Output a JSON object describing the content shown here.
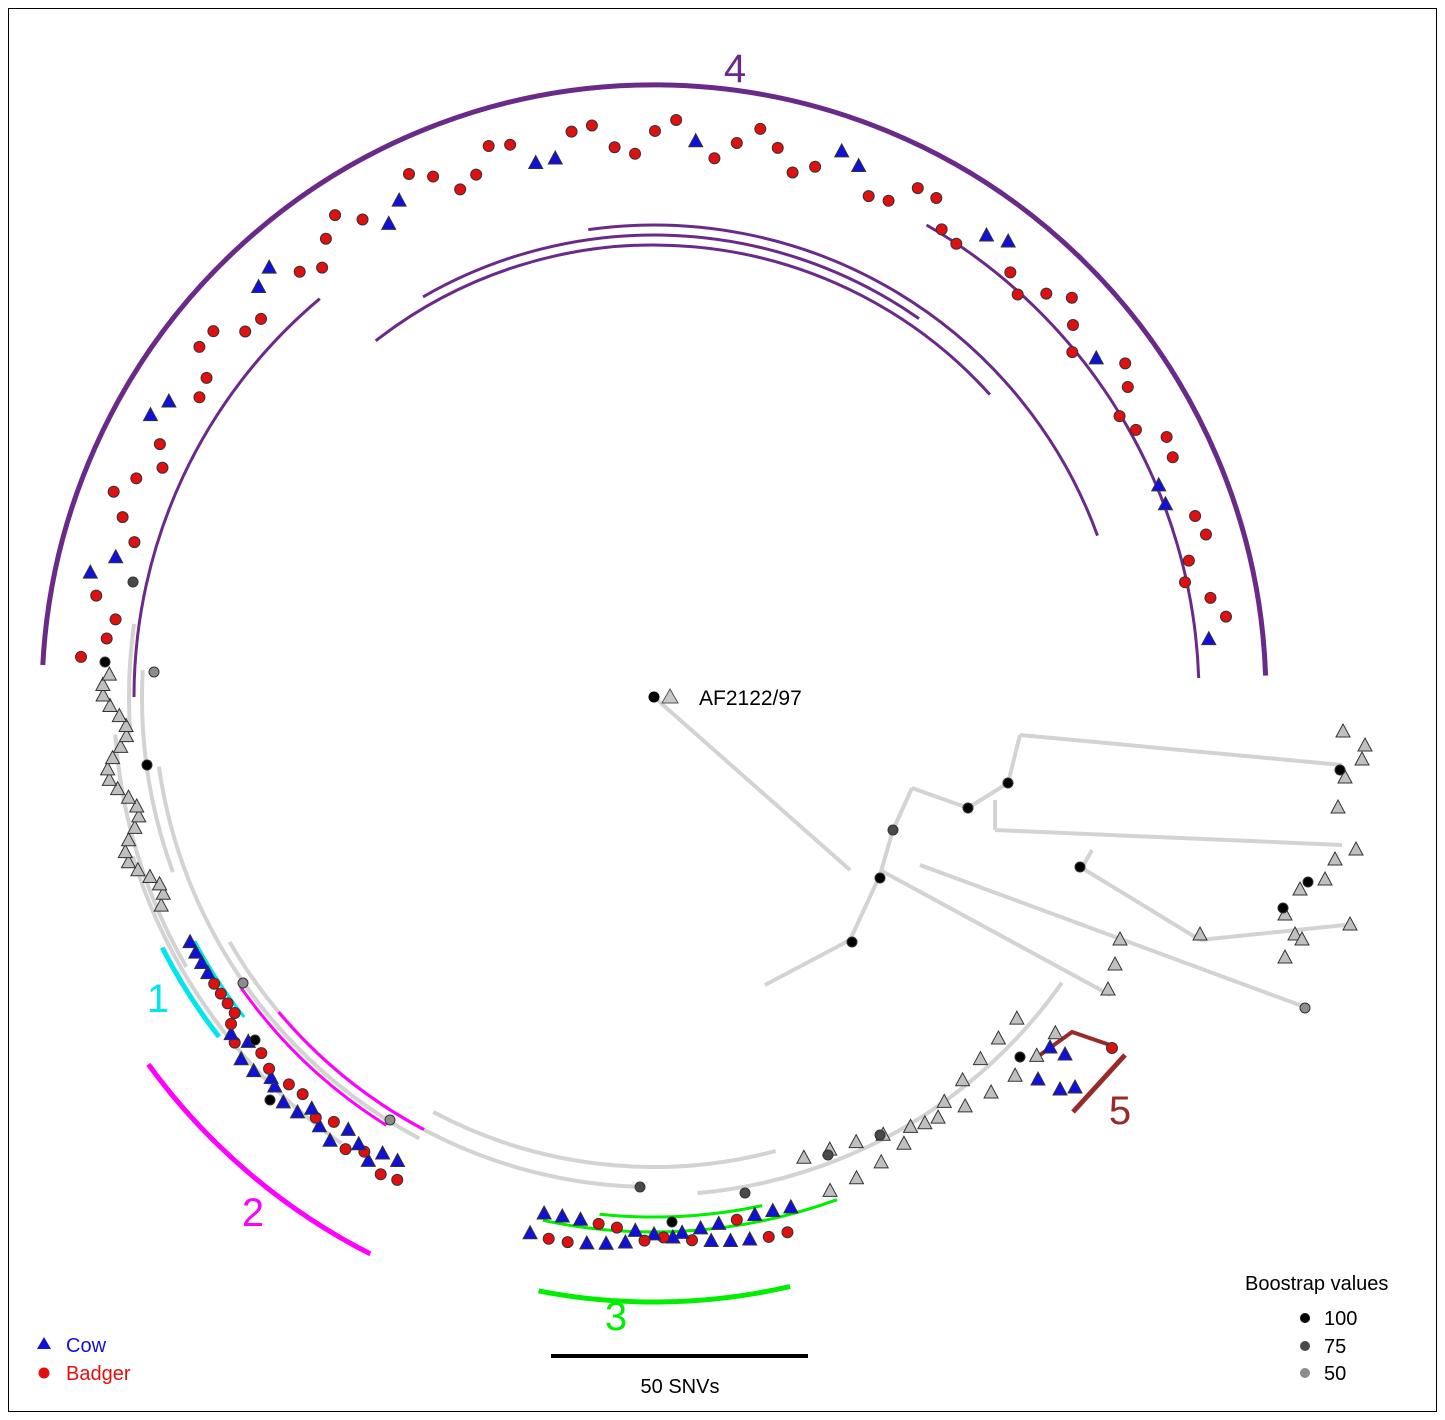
{
  "colors": {
    "cow": "#1010d8",
    "badger": "#e01010",
    "gray_branch": "#d3d3d3",
    "clade1": "#00e5ee",
    "clade2": "#ff00ff",
    "clade3": "#00ee00",
    "clade4": "#6a2a8a",
    "clade5": "#9a2a2a",
    "boot100": "#000000",
    "boot75": "#4a4a4a",
    "boot50": "#8c8c8c"
  },
  "root_label": "AF2122/97",
  "clades": [
    {
      "id": "1",
      "label": "1",
      "color_key": "clade1"
    },
    {
      "id": "2",
      "label": "2",
      "color_key": "clade2"
    },
    {
      "id": "3",
      "label": "3",
      "color_key": "clade3"
    },
    {
      "id": "4",
      "label": "4",
      "color_key": "clade4"
    },
    {
      "id": "5",
      "label": "5",
      "color_key": "clade5"
    }
  ],
  "host_legend": [
    {
      "label": "Cow",
      "shape": "triangle",
      "color_key": "cow"
    },
    {
      "label": "Badger",
      "shape": "circle",
      "color_key": "badger"
    }
  ],
  "bootstrap_legend": {
    "title": "Boostrap values",
    "items": [
      {
        "label": "100",
        "value": 100,
        "color_key": "boot100"
      },
      {
        "label": "75",
        "value": 75,
        "color_key": "boot75"
      },
      {
        "label": "50",
        "value": 50,
        "color_key": "boot50"
      }
    ]
  },
  "scale_bar": {
    "label": "50 SNVs",
    "value": 50,
    "unit": "SNVs"
  }
}
